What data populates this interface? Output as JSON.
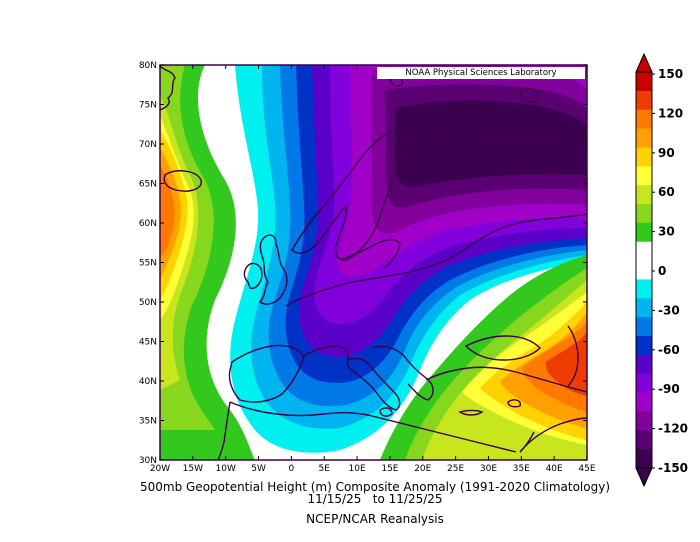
{
  "map": {
    "credit": "NOAA Physical Sciences Laboratory",
    "lat_labels": [
      "80N",
      "75N",
      "70N",
      "65N",
      "60N",
      "55N",
      "50N",
      "45N",
      "40N",
      "35N",
      "30N"
    ],
    "lon_labels": [
      "20W",
      "15W",
      "10W",
      "5W",
      "0",
      "5E",
      "10E",
      "15E",
      "20E",
      "25E",
      "30E",
      "35E",
      "40E",
      "45E"
    ],
    "title": "500mb Geopotential Height (m) Composite Anomaly (1991-2020 Climatology)",
    "dates": "11/15/25   to 11/25/25",
    "source": "NCEP/NCAR Reanalysis"
  },
  "colorbar": {
    "labels": [
      "150",
      "120",
      "90",
      "60",
      "30",
      "0",
      "-30",
      "-60",
      "-90",
      "-120",
      "-150"
    ],
    "colors": [
      "#c80000",
      "#ee3c00",
      "#ff7800",
      "#ffa000",
      "#ffd200",
      "#ffff37",
      "#c8e61e",
      "#87d71e",
      "#32c81e",
      "#ffffff",
      "#ffffff",
      "#00f0f0",
      "#00b4f0",
      "#0078e6",
      "#0032c8",
      "#5a00c8",
      "#8200dc",
      "#a000c8",
      "#82009b",
      "#5a0073",
      "#3c0050"
    ]
  },
  "colors": {
    "coastline": "#3c0046"
  }
}
